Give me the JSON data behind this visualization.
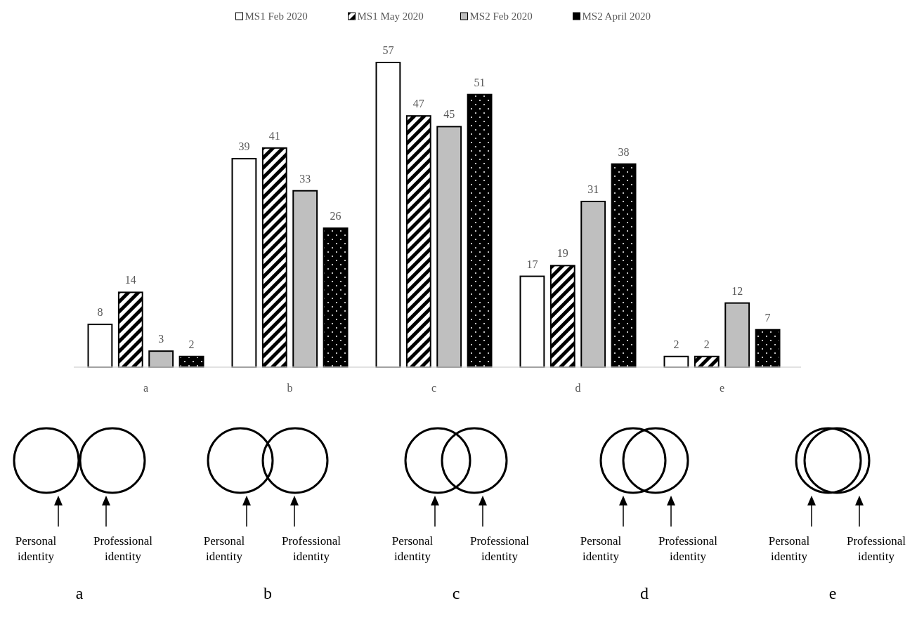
{
  "chart_data": {
    "type": "bar",
    "categories": [
      "a",
      "b",
      "c",
      "d",
      "e"
    ],
    "series": [
      {
        "name": "MS1 Feb 2020",
        "color": "#ffffff",
        "values": [
          8,
          39,
          57,
          17,
          2
        ]
      },
      {
        "name": "MS1 May 2020",
        "color": "#000000",
        "values": [
          14,
          41,
          47,
          19,
          2
        ]
      },
      {
        "name": "MS2 Feb 2020",
        "color": "#bfbfbf",
        "values": [
          3,
          33,
          45,
          31,
          12
        ]
      },
      {
        "name": "MS2 April 2020",
        "color": "#000000",
        "values": [
          2,
          26,
          51,
          38,
          7
        ]
      }
    ],
    "data_labels": true,
    "legend": "top",
    "annotations": [
      "Personal identity",
      "Professional identity",
      "a",
      "Personal identity",
      "Professional identity",
      "b",
      "Personal identity",
      "Professional identity",
      "c",
      "Personal identity",
      "Professional identity",
      "d",
      "Personal identity",
      "Professional identity",
      "e"
    ]
  }
}
